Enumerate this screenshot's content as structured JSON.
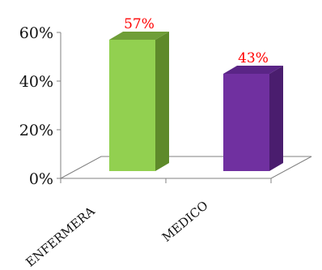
{
  "chart_data": {
    "type": "bar",
    "categories": [
      "ENFERMERA",
      "MEDICO"
    ],
    "values": [
      57,
      43
    ],
    "data_labels": [
      "57%",
      "43%"
    ],
    "y_ticks": [
      "0%",
      "20%",
      "40%",
      "60%"
    ],
    "ylim": [
      0,
      60
    ],
    "grid": false,
    "legend": "none",
    "colors": {
      "bars": [
        {
          "front": "#92d050",
          "side": "#5e8a2a",
          "top": "#6f9e38"
        },
        {
          "front": "#7030a0",
          "side": "#4a1d6e",
          "top": "#5a2586"
        }
      ],
      "data_label": "#ff0000",
      "axis": "#808080"
    }
  }
}
